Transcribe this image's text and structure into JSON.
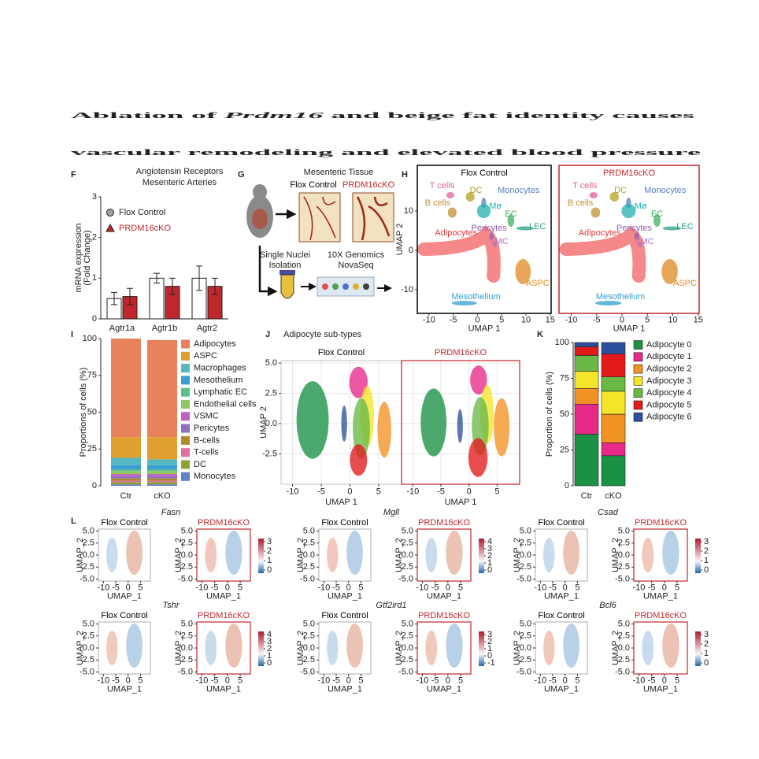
{
  "title_lines": [
    [
      {
        "text": "Ablation of "
      },
      {
        "text": "Prdm16",
        "italic": true
      },
      {
        "text": " and beige fat identity causes"
      }
    ],
    [
      {
        "text": "vascular remodeling and elevated blood pressure"
      }
    ]
  ],
  "diagram": {
    "label": "G",
    "title": "Mesenteric Tissue",
    "groups": [
      {
        "name": "Flox Control",
        "color": "#000000"
      },
      {
        "name": "PRDM16cKO",
        "color": "#c0272d"
      }
    ],
    "steps": [
      [
        "Single Nuclei",
        "Isolation"
      ],
      [
        "10X Genomics",
        "NovaSeq"
      ]
    ]
  },
  "chart_data": [
    {
      "type": "bar",
      "label": "F",
      "title_lines": [
        "Angiotensin Receptors",
        "Mesenteric Arteries"
      ],
      "ylabel_lines": [
        "mRNA expression",
        "(Fold Change)"
      ],
      "categories": [
        "Agtr1a",
        "Agtr1b",
        "Agtr2"
      ],
      "series": [
        {
          "name": "Flox Control",
          "color": "#ffffff",
          "marker_color": "#a0a0a0",
          "values": [
            0.5,
            1.0,
            1.0
          ],
          "errors": [
            0.15,
            0.12,
            0.3
          ]
        },
        {
          "name": "PRDM16cKO",
          "color": "#c0272d",
          "marker_color": "#c0272d",
          "values": [
            0.55,
            0.8,
            0.8
          ],
          "errors": [
            0.2,
            0.2,
            0.2
          ]
        }
      ],
      "ylim": [
        0,
        3
      ],
      "yticks": [
        0,
        1,
        2,
        3
      ]
    },
    {
      "type": "scatter",
      "label": "H",
      "panels": [
        {
          "title": "Flox Control",
          "color": "#000000"
        },
        {
          "title": "PRDM16cKO",
          "color": "#c0272d"
        }
      ],
      "xlabel": "UMAP 1",
      "ylabel": "UMAP 2",
      "xlim": [
        -12.4,
        15.2
      ],
      "xticks": [
        -10,
        -5,
        0,
        5,
        10,
        15
      ],
      "ylim": [
        -16,
        21.6
      ],
      "yticks": [
        -10,
        0,
        10
      ],
      "clusters": [
        {
          "name": "T cells",
          "color": "#e0609a"
        },
        {
          "name": "DC",
          "color": "#b0a020"
        },
        {
          "name": "Monocytes",
          "color": "#5a7fc0"
        },
        {
          "name": "B cells",
          "color": "#c09030"
        },
        {
          "name": "Mø",
          "color": "#20b0b0"
        },
        {
          "name": "EC",
          "color": "#40b060"
        },
        {
          "name": "LEC",
          "color": "#20a080"
        },
        {
          "name": "Adipocytes",
          "color": "#e03a3a"
        },
        {
          "name": "Pericytes",
          "color": "#9060b0"
        },
        {
          "name": "SMC",
          "color": "#b070c0"
        },
        {
          "name": "ASPC",
          "color": "#e08a20"
        },
        {
          "name": "Mesothelium",
          "color": "#30a0d0"
        }
      ]
    },
    {
      "type": "stacked_bar",
      "label": "I",
      "ylabel": "Proportions of cells (%)",
      "categories": [
        "Ctr",
        "cKO"
      ],
      "series": [
        {
          "name": "Adipocytes",
          "color": "#e8825a",
          "values": [
            67,
            66
          ]
        },
        {
          "name": "ASPC",
          "color": "#e0a030",
          "values": [
            14,
            15
          ]
        },
        {
          "name": "Macrophages",
          "color": "#55b8c0",
          "values": [
            5,
            4
          ]
        },
        {
          "name": "Mesothelium",
          "color": "#3a9fd0",
          "values": [
            3,
            3
          ]
        },
        {
          "name": "Lymphatic EC",
          "color": "#5dc08a",
          "values": [
            1,
            1
          ]
        },
        {
          "name": "Endothelial cells",
          "color": "#8fc860",
          "values": [
            2,
            2
          ]
        },
        {
          "name": "VSMC",
          "color": "#c060c0",
          "values": [
            1.5,
            1.5
          ]
        },
        {
          "name": "Pericytes",
          "color": "#9070c0",
          "values": [
            1.5,
            1.5
          ]
        },
        {
          "name": "B-cells",
          "color": "#b08a30",
          "values": [
            1.5,
            1.5
          ]
        },
        {
          "name": "T-cells",
          "color": "#e070a0",
          "values": [
            1,
            1
          ]
        },
        {
          "name": "DC",
          "color": "#90a030",
          "values": [
            1.5,
            1.5
          ]
        },
        {
          "name": "Monocytes",
          "color": "#6080c8",
          "values": [
            1,
            1
          ]
        }
      ],
      "ylim": [
        0,
        100
      ],
      "yticks": [
        0,
        25,
        50,
        75,
        100
      ]
    },
    {
      "type": "scatter",
      "label": "J",
      "title": "Adipocyte sub-types",
      "panels": [
        {
          "title": "Flox Control",
          "color": "#000000"
        },
        {
          "title": "PRDM16cKO",
          "color": "#c0272d"
        }
      ],
      "xlabel": "UMAP 1",
      "ylabel": "UMAP 2",
      "xlim": [
        -12,
        9
      ],
      "xticks": [
        -10,
        -5,
        0,
        5
      ],
      "ylim": [
        -5,
        5.2
      ],
      "yticks": [
        -2.5,
        {
          "value": 0,
          "label": "0.0"
        },
        2.5,
        {
          "value": 5,
          "label": "5.0"
        }
      ],
      "grid": true
    },
    {
      "type": "stacked_bar",
      "label": "K",
      "ylabel": "Proportion of cells (%)",
      "categories": [
        "Ctr",
        "cKO"
      ],
      "series": [
        {
          "name": "Adipocyte 0",
          "color": "#1a9144",
          "values": [
            36,
            21
          ]
        },
        {
          "name": "Adipocyte 1",
          "color": "#e7298a",
          "values": [
            21,
            9
          ]
        },
        {
          "name": "Adipocyte 2",
          "color": "#f39224",
          "values": [
            11,
            20
          ]
        },
        {
          "name": "Adipocyte 3",
          "color": "#f5e52a",
          "values": [
            12,
            16
          ]
        },
        {
          "name": "Adipocyte 4",
          "color": "#6ab946",
          "values": [
            11,
            10
          ]
        },
        {
          "name": "Adipocyte 5",
          "color": "#e31a1c",
          "values": [
            6,
            16
          ]
        },
        {
          "name": "Adipocyte 6",
          "color": "#2c4f9e",
          "values": [
            3,
            8
          ]
        }
      ],
      "ylim": [
        0,
        100
      ],
      "yticks": [
        0,
        25,
        50,
        75,
        100
      ]
    },
    {
      "type": "scatter",
      "label": "L",
      "panels": [
        {
          "title": "Flox Control",
          "color": "#000000"
        },
        {
          "title": "PRDM16cKO",
          "color": "#c0272d"
        }
      ],
      "xlabel": "UMAP_1",
      "ylabel": "UMAP_2",
      "xlim": [
        -12,
        9
      ],
      "xticks": [
        -10,
        -5,
        0,
        5
      ],
      "ylim": [
        -5.4,
        5.4
      ],
      "yticks": [
        {
          "value": -5,
          "label": "-5.0"
        },
        -2.5,
        {
          "value": 0,
          "label": "0.0"
        },
        2.5,
        {
          "value": 5,
          "label": "5.0"
        }
      ],
      "genes": [
        {
          "name": "Fasn",
          "colorbar_ticks": [
            0,
            1,
            2,
            3
          ]
        },
        {
          "name": "Mgll",
          "colorbar_ticks": [
            0,
            1,
            2,
            3,
            4
          ]
        },
        {
          "name": "Csad",
          "colorbar_ticks": [
            0,
            1,
            2,
            3
          ]
        },
        {
          "name": "Tshr",
          "colorbar_ticks": [
            0,
            1,
            2,
            3,
            4
          ]
        },
        {
          "name": "Gtf2ird1",
          "colorbar_ticks": [
            -1,
            0,
            1,
            2,
            3
          ]
        },
        {
          "name": "Bcl6",
          "colorbar_ticks": [
            0,
            1,
            2,
            3
          ]
        }
      ]
    }
  ]
}
